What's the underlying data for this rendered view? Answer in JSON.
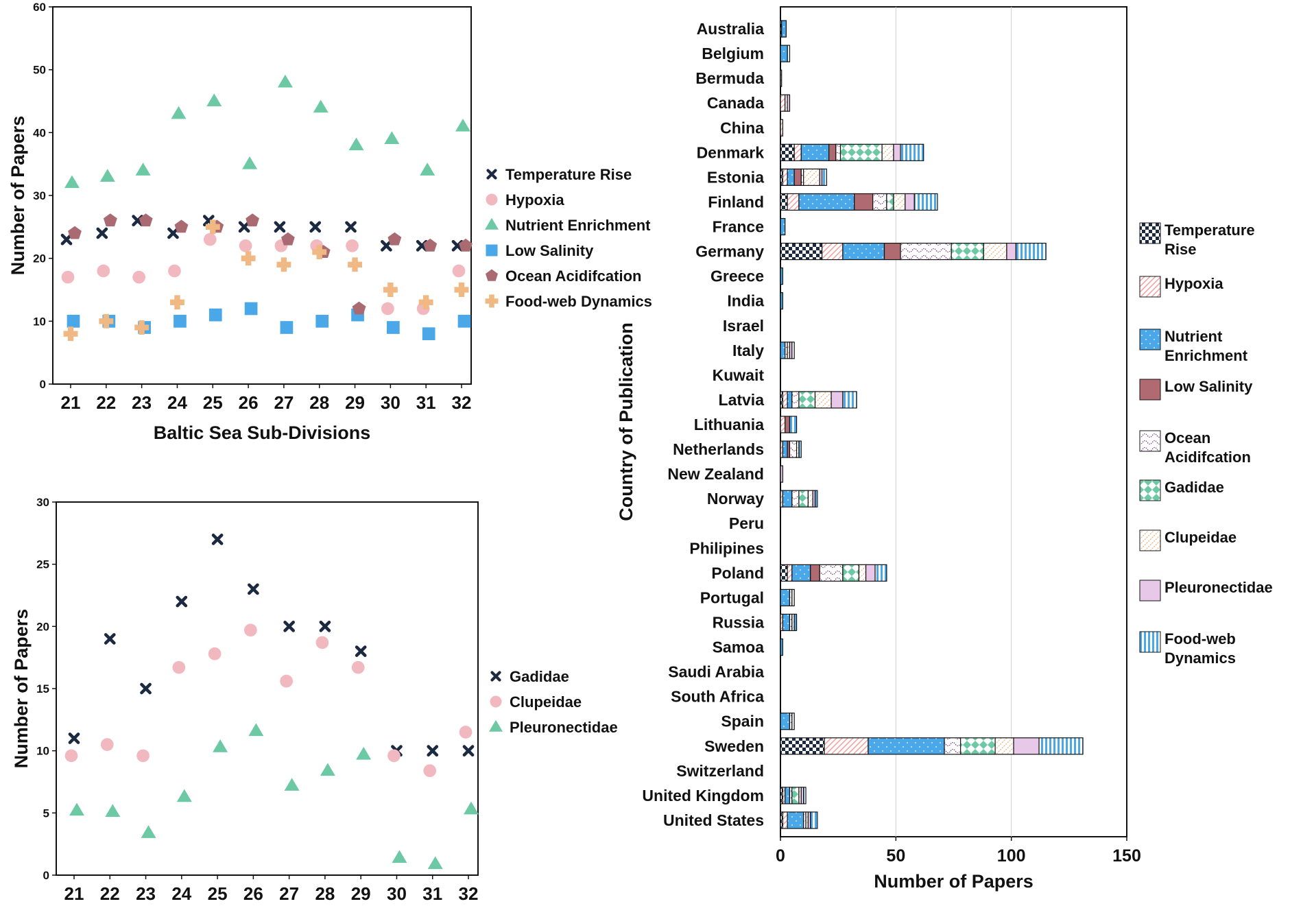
{
  "colors": {
    "temperature": "#1b2a41",
    "hypoxia": "#f2b8bf",
    "nutrient": "#6cc9a3",
    "lowsal": "#4aa8e8",
    "ocean": "#a96a72",
    "foodweb": "#f0b883",
    "gadidae": "#1b2a41",
    "clupeidae": "#f2b8bf",
    "pleuro": "#6cc9a3",
    "bar_temp": "#1b2a41",
    "bar_hypoxia": "#f4a6a6",
    "bar_nutrient": "#4aa8e8",
    "bar_lowsal": "#b06a72",
    "bar_ocean": "#7a3f8a",
    "bar_gadidae": "#6cc9a3",
    "bar_clupeidae": "#f0b883",
    "bar_pleuro": "#e8c8e8",
    "bar_foodweb": "#4aa8e8"
  },
  "chart_data": [
    {
      "type": "scatter",
      "id": "top",
      "xlabel": "Baltic Sea Sub-Divisions",
      "ylabel": "Number of Papers",
      "categories": [
        "21",
        "22",
        "23",
        "24",
        "25",
        "26",
        "27",
        "28",
        "29",
        "30",
        "31",
        "32"
      ],
      "ylim": [
        0,
        60
      ],
      "yticks": [
        "0",
        "10",
        "20",
        "30",
        "40",
        "50",
        "60"
      ],
      "series": [
        {
          "name": "Temperature Rise",
          "marker": "cross",
          "color_key": "temperature",
          "values": [
            23,
            24,
            26,
            24,
            26,
            25,
            25,
            25,
            25,
            22,
            22,
            22
          ]
        },
        {
          "name": "Hypoxia",
          "marker": "circle",
          "color_key": "hypoxia",
          "values": [
            17,
            18,
            17,
            18,
            23,
            22,
            22,
            22,
            22,
            12,
            12,
            18
          ]
        },
        {
          "name": "Nutrient Enrichment",
          "marker": "triangle",
          "color_key": "nutrient",
          "values": [
            32,
            33,
            34,
            43,
            45,
            35,
            48,
            44,
            38,
            39,
            34,
            41
          ]
        },
        {
          "name": "Low Salinity",
          "marker": "square",
          "color_key": "lowsal",
          "values": [
            10,
            10,
            9,
            10,
            11,
            12,
            9,
            10,
            11,
            9,
            8,
            10
          ]
        },
        {
          "name": "Ocean Acidifcation",
          "marker": "pentagon",
          "color_key": "ocean",
          "values": [
            24,
            26,
            26,
            25,
            25,
            26,
            23,
            21,
            12,
            23,
            22,
            22
          ]
        },
        {
          "name": "Food-web Dynamics",
          "marker": "plus",
          "color_key": "foodweb",
          "values": [
            8,
            10,
            9,
            13,
            25,
            20,
            19,
            21,
            19,
            15,
            13,
            15
          ]
        }
      ]
    },
    {
      "type": "scatter",
      "id": "bottom",
      "xlabel": "Baltic Sea Sub-Divisions",
      "ylabel": "Number of Papers",
      "categories": [
        "21",
        "22",
        "23",
        "24",
        "25",
        "26",
        "27",
        "28",
        "29",
        "30",
        "31",
        "32"
      ],
      "ylim": [
        0,
        30
      ],
      "yticks": [
        "0",
        "5",
        "10",
        "15",
        "20",
        "25",
        "30"
      ],
      "series": [
        {
          "name": "Gadidae",
          "marker": "cross",
          "color_key": "gadidae",
          "values": [
            11,
            19,
            15,
            22,
            27,
            23,
            20,
            20,
            18,
            10,
            10,
            10
          ]
        },
        {
          "name": "Clupeidae",
          "marker": "circle",
          "color_key": "clupeidae",
          "values": [
            9.6,
            10.5,
            9.6,
            16.7,
            17.8,
            19.7,
            15.6,
            18.7,
            16.7,
            9.6,
            8.4,
            11.5
          ]
        },
        {
          "name": "Pleuronectidae",
          "marker": "triangle",
          "color_key": "pleuro",
          "values": [
            5.2,
            5.1,
            3.4,
            6.3,
            10.3,
            11.6,
            7.2,
            8.4,
            9.7,
            1.4,
            0.9,
            5.3
          ]
        }
      ]
    },
    {
      "type": "bar",
      "id": "countries",
      "orientation": "horizontal",
      "stacked": true,
      "xlabel": "Number of Papers",
      "ylabel": "Country of Publication",
      "xlim": [
        0,
        150
      ],
      "xticks": [
        "0",
        "50",
        "100",
        "150"
      ],
      "categories": [
        "Australia",
        "Belgium",
        "Bermuda",
        "Canada",
        "China",
        "Denmark",
        "Estonia",
        "Finland",
        "France",
        "Germany",
        "Greece",
        "India",
        "Israel",
        "Italy",
        "Kuwait",
        "Latvia",
        "Lithuania",
        "Netherlands",
        "New Zealand",
        "Norway",
        "Peru",
        "Philipines",
        "Poland",
        "Portugal",
        "Russia",
        "Samoa",
        "Saudi Arabia",
        "South Africa",
        "Spain",
        "Sweden",
        "Switzerland",
        "United Kingdom",
        "United States"
      ],
      "series": [
        {
          "name": "Temperature Rise",
          "color_key": "bar_temp",
          "pattern": "checker",
          "values": [
            0.5,
            0,
            0,
            0,
            0,
            6,
            1,
            3,
            0,
            18,
            0,
            0,
            0,
            0,
            0,
            1,
            0,
            0,
            0,
            0,
            0,
            0,
            3,
            0,
            0,
            0,
            0,
            0,
            0,
            19,
            0,
            1,
            1
          ]
        },
        {
          "name": "Hypoxia",
          "color_key": "bar_hypoxia",
          "pattern": "diag",
          "values": [
            0,
            0,
            0.5,
            2,
            1,
            3,
            2,
            5,
            0,
            9,
            0,
            0,
            0,
            0,
            0,
            2,
            2,
            1,
            0,
            1,
            0,
            0,
            2,
            0,
            1,
            0,
            0,
            0,
            0,
            19,
            0,
            1,
            2
          ]
        },
        {
          "name": "Nutrient Enrichment",
          "color_key": "bar_nutrient",
          "pattern": "dots",
          "values": [
            2,
            3,
            0,
            0,
            0,
            12,
            3,
            24,
            2,
            18,
            1,
            1,
            0,
            2,
            0,
            2,
            0,
            2,
            0,
            4,
            0,
            0,
            8,
            4,
            3,
            1,
            0,
            0,
            4,
            33,
            0,
            2,
            7
          ]
        },
        {
          "name": "Low Salinity",
          "color_key": "bar_lowsal",
          "pattern": "solid",
          "values": [
            0,
            0,
            0,
            0,
            0,
            3,
            3,
            8,
            0,
            7,
            0,
            0,
            0,
            0,
            0,
            0,
            2,
            1,
            0,
            0,
            0,
            0,
            4,
            0,
            0,
            0,
            0,
            0,
            0,
            0,
            0,
            0,
            0
          ]
        },
        {
          "name": "Ocean Acidifcation",
          "color_key": "bar_ocean",
          "pattern": "wave",
          "values": [
            0,
            0,
            0,
            0,
            0,
            2,
            1,
            6,
            0,
            22,
            0,
            0,
            0,
            1,
            0,
            3,
            0,
            3,
            0,
            3,
            0,
            0,
            10,
            0,
            1,
            0,
            0,
            0,
            1,
            7,
            0,
            1,
            1
          ]
        },
        {
          "name": "Gadidae",
          "color_key": "bar_gadidae",
          "pattern": "diamond",
          "values": [
            0,
            0,
            0,
            0,
            0,
            18,
            0,
            3,
            0,
            14,
            0,
            0,
            0,
            0,
            0,
            7,
            0,
            0,
            0,
            4,
            0,
            0,
            7,
            0,
            0,
            0,
            0,
            0,
            0,
            15,
            0,
            3,
            0
          ]
        },
        {
          "name": "Clupeidae",
          "color_key": "bar_clupeidae",
          "pattern": "hatch",
          "values": [
            0,
            0,
            0,
            1,
            0,
            5,
            7,
            5,
            0,
            10,
            0,
            0,
            0,
            1,
            0,
            7,
            0,
            1,
            0,
            2,
            0,
            0,
            3,
            1,
            1,
            0,
            0,
            0,
            0,
            8,
            0,
            1,
            1
          ]
        },
        {
          "name": "Pleuronectidae",
          "color_key": "bar_pleuro",
          "pattern": "solid",
          "values": [
            0,
            0,
            0,
            1,
            0,
            3,
            1,
            4,
            0,
            4,
            0,
            0,
            0,
            1,
            0,
            5,
            0,
            0,
            1,
            1,
            0,
            0,
            4,
            0,
            0,
            0,
            0,
            0,
            0,
            11,
            0,
            1,
            1
          ]
        },
        {
          "name": "Food-web Dynamics",
          "color_key": "bar_foodweb",
          "pattern": "vstripe",
          "values": [
            0,
            1,
            0,
            0,
            0,
            10,
            2,
            10,
            0,
            13,
            0,
            0,
            0,
            1,
            0,
            6,
            3,
            1,
            0,
            1,
            0,
            0,
            5,
            1,
            1,
            0,
            0,
            0,
            1,
            19,
            0,
            1,
            3
          ]
        }
      ]
    }
  ],
  "legends": {
    "top": [
      "Temperature Rise",
      "Hypoxia",
      "Nutrient Enrichment",
      "Low Salinity",
      "Ocean Acidifcation",
      "Food-web Dynamics"
    ],
    "bottom": [
      "Gadidae",
      "Clupeidae",
      "Pleuronectidae"
    ],
    "bar": [
      [
        "Temperature",
        "Rise"
      ],
      [
        "Hypoxia"
      ],
      [
        "Nutrient",
        "Enrichment"
      ],
      [
        "Low Salinity"
      ],
      [
        "Ocean",
        "Acidifcation"
      ],
      [
        "Gadidae"
      ],
      [
        "Clupeidae"
      ],
      [
        "Pleuronectidae"
      ],
      [
        "Food-web",
        "Dynamics"
      ]
    ]
  }
}
